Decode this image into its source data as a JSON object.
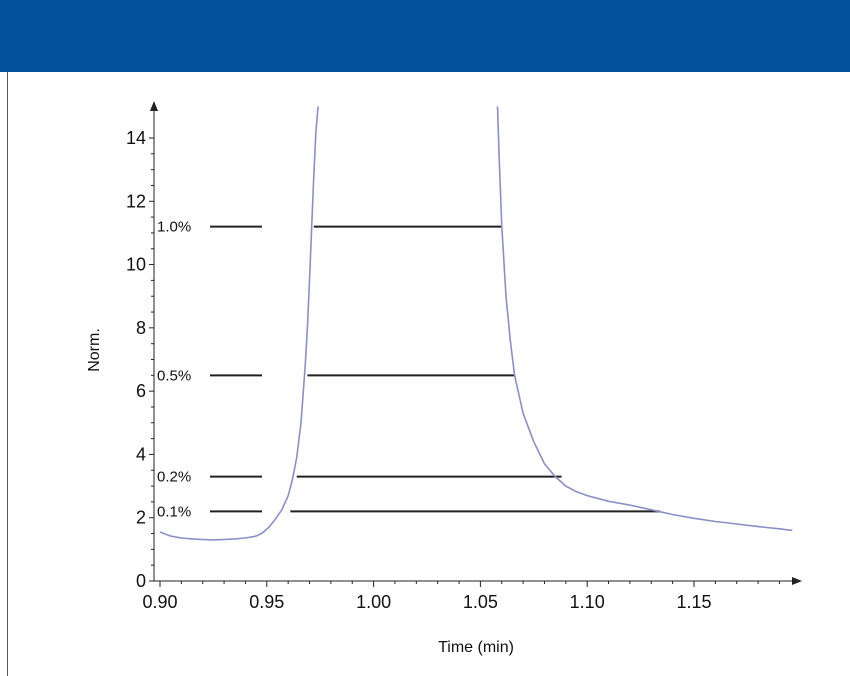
{
  "colors": {
    "header": "#02519a",
    "curve": "#8a8fc7",
    "axis": "#222222",
    "level_line": "#222222"
  },
  "chart_data": {
    "type": "line",
    "title": "",
    "xlabel": "Time (min)",
    "ylabel": "Norm.",
    "xlim": [
      0.9,
      1.2
    ],
    "ylim": [
      0,
      15
    ],
    "x_ticks": [
      0.9,
      0.95,
      1.0,
      1.05,
      1.1,
      1.15
    ],
    "x_tick_labels": [
      "0.90",
      "0.95",
      "1.00",
      "1.05",
      "1.10",
      "1.15"
    ],
    "y_ticks": [
      0,
      2,
      4,
      6,
      8,
      10,
      12,
      14
    ],
    "y_tick_labels": [
      "0",
      "2",
      "4",
      "6",
      "8",
      "10",
      "12",
      "14"
    ],
    "grid": false,
    "legend": "none",
    "series": [
      {
        "x": [
          0.9,
          0.905,
          0.91,
          0.915,
          0.92,
          0.925,
          0.93,
          0.935,
          0.94,
          0.945,
          0.948,
          0.951,
          0.954,
          0.957,
          0.96,
          0.962,
          0.964,
          0.966,
          0.968,
          0.969,
          0.97,
          0.971,
          0.972,
          0.973,
          0.974
        ],
        "y": [
          1.55,
          1.42,
          1.36,
          1.33,
          1.31,
          1.3,
          1.31,
          1.33,
          1.36,
          1.42,
          1.52,
          1.7,
          1.95,
          2.25,
          2.7,
          3.2,
          3.9,
          5.0,
          6.8,
          8.0,
          9.5,
          11.2,
          12.8,
          14.2,
          15.0
        ]
      },
      {
        "x": [
          1.058,
          1.059,
          1.06,
          1.062,
          1.064,
          1.066,
          1.07,
          1.075,
          1.08,
          1.085,
          1.09,
          1.095,
          1.1,
          1.11,
          1.12,
          1.13,
          1.14,
          1.15,
          1.16,
          1.17,
          1.18,
          1.19,
          1.196
        ],
        "y": [
          15.0,
          13.0,
          11.2,
          9.0,
          7.6,
          6.5,
          5.3,
          4.4,
          3.7,
          3.3,
          3.0,
          2.82,
          2.7,
          2.52,
          2.4,
          2.25,
          2.1,
          1.98,
          1.88,
          1.8,
          1.72,
          1.65,
          1.6
        ]
      }
    ],
    "levels": [
      {
        "label": "1.0%",
        "y": 11.2,
        "x_start": 0.972,
        "x_end": 1.06
      },
      {
        "label": "0.5%",
        "y": 6.5,
        "x_start": 0.969,
        "x_end": 1.066
      },
      {
        "label": "0.2%",
        "y": 3.3,
        "x_start": 0.964,
        "x_end": 1.088
      },
      {
        "label": "0.1%",
        "y": 2.2,
        "x_start": 0.961,
        "x_end": 1.134
      }
    ]
  }
}
